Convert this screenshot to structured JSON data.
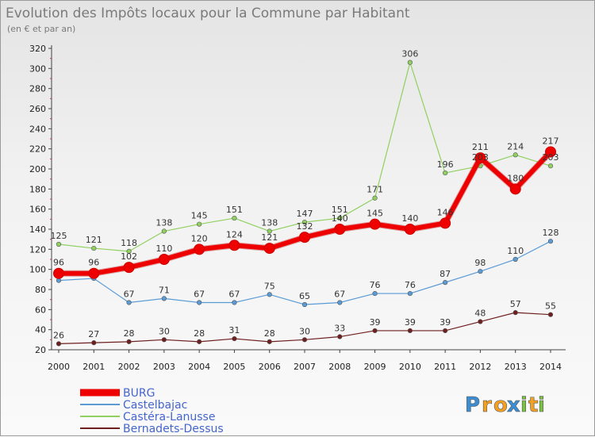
{
  "chart_data": {
    "type": "line",
    "title": "Evolution des Impôts locaux pour la Commune par Habitant",
    "subtitle": "(en € et par an)",
    "xlabel": "",
    "ylabel": "",
    "x": [
      "2000",
      "2001",
      "2002",
      "2003",
      "2004",
      "2005",
      "2006",
      "2007",
      "2008",
      "2009",
      "2010",
      "2011",
      "2012",
      "2013",
      "2014"
    ],
    "ylim": [
      20,
      320
    ],
    "yticks": [
      "20",
      "40",
      "60",
      "80",
      "100",
      "120",
      "140",
      "160",
      "180",
      "200",
      "220",
      "240",
      "260",
      "280",
      "300",
      "320"
    ],
    "grid": false,
    "legend_position": "bottom-left",
    "series": [
      {
        "name": "Bernadets-Dessus",
        "color": "#6e1f1f",
        "width": 1.2,
        "marker": 2.8,
        "values": [
          26,
          27,
          28,
          30,
          28,
          31,
          28,
          30,
          33,
          39,
          39,
          39,
          48,
          57,
          55
        ],
        "labels": [
          "26",
          "27",
          "28",
          "30",
          "28",
          "31",
          "28",
          "30",
          "33",
          "39",
          "39",
          "39",
          "48",
          "57",
          "55"
        ]
      },
      {
        "name": "Castelbajac",
        "color": "#5b9bd5",
        "width": 1.2,
        "marker": 2.8,
        "values": [
          89,
          91,
          67,
          71,
          67,
          67,
          75,
          65,
          67,
          76,
          76,
          87,
          98,
          110,
          128
        ],
        "labels": [
          "",
          "",
          "67",
          "71",
          "67",
          "67",
          "75",
          "65",
          "67",
          "76",
          "76",
          "87",
          "98",
          "110",
          "128"
        ]
      },
      {
        "name": "Castéra-Lanusse",
        "color": "#90d060",
        "width": 1.2,
        "marker": 2.8,
        "values": [
          125,
          121,
          118,
          138,
          145,
          151,
          138,
          147,
          151,
          171,
          306,
          196,
          203,
          214,
          203
        ],
        "labels": [
          "125",
          "121",
          "118",
          "138",
          "145",
          "151",
          "138",
          "147",
          "151",
          "171",
          "306",
          "196",
          "203",
          "214",
          "203"
        ]
      },
      {
        "name": "BURG",
        "color": "#ee0000",
        "width": 6,
        "marker": 6.5,
        "values": [
          96,
          96,
          102,
          110,
          120,
          124,
          121,
          132,
          140,
          145,
          140,
          146,
          211,
          180,
          217
        ],
        "labels": [
          "96",
          "96",
          "102",
          "110",
          "120",
          "124",
          "121",
          "132",
          "140",
          "145",
          "140",
          "146",
          "211",
          "180",
          "217"
        ]
      }
    ]
  },
  "legend": {
    "entries": [
      {
        "name": "BURG",
        "color": "#ee0000",
        "thick": true
      },
      {
        "name": "Castelbajac",
        "color": "#5b9bd5",
        "thick": false
      },
      {
        "name": "Castéra-Lanusse",
        "color": "#90d060",
        "thick": false
      },
      {
        "name": "Bernadets-Dessus",
        "color": "#6e1f1f",
        "thick": false
      }
    ]
  },
  "logo": {
    "letters": [
      "P",
      "r",
      "o",
      "x",
      "i",
      "t",
      "i"
    ],
    "colors": [
      "#3a8ed6",
      "#f4a020",
      "#f4a020",
      "#3a8ed6",
      "#7cc242",
      "#f4a020",
      "#7cc242"
    ]
  }
}
